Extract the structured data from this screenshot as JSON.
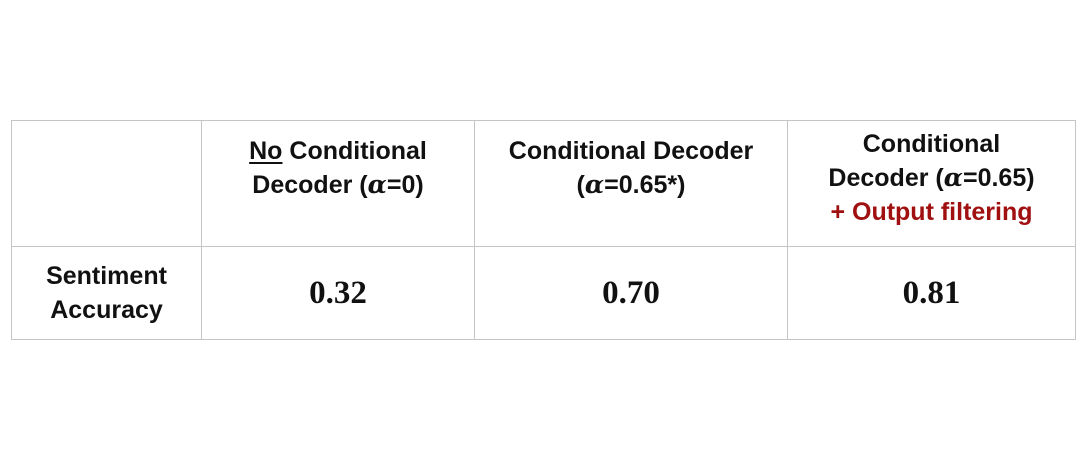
{
  "table": {
    "header": {
      "col1": {
        "part1": "No",
        "part2": " Conditional",
        "line2a": "Decoder (",
        "alpha": "α",
        "line2b": "=0)"
      },
      "col2": {
        "line1": "Conditional Decoder",
        "line2a": "(",
        "alpha": "α",
        "line2b": "=0.65*)"
      },
      "col3": {
        "line1": "Conditional",
        "line2a": "Decoder (",
        "alpha": "α",
        "line2b": "=0.65)",
        "line3": "+ Output filtering"
      }
    },
    "row": {
      "label_line1": "Sentiment",
      "label_line2": "Accuracy",
      "values": [
        "0.32",
        "0.70",
        "0.81"
      ]
    }
  },
  "colors": {
    "highlight": "#a01010",
    "border": "#c4c4c4"
  }
}
